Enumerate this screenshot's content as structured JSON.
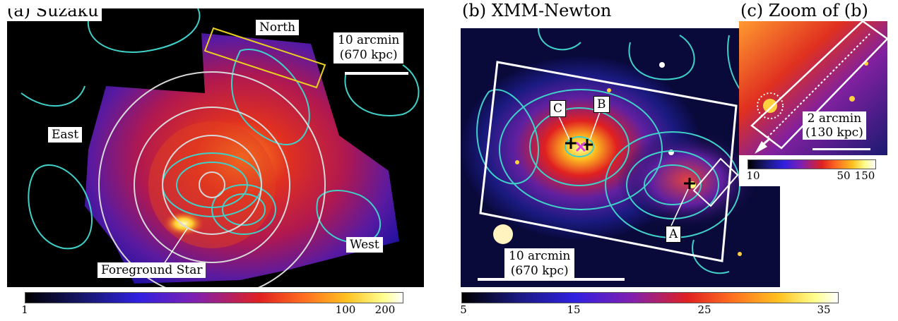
{
  "panels": {
    "a": {
      "title": "(a) Suzaku",
      "labels": {
        "north": "North",
        "east": "East",
        "west": "West",
        "star": "Foreground Star"
      },
      "scale": {
        "line1": "10 arcmin",
        "line2": "(670 kpc)"
      },
      "colorbar": {
        "ticks": [
          "1",
          "100",
          "200"
        ]
      }
    },
    "b": {
      "title": "(b) XMM-Newton",
      "markers": {
        "a": "A",
        "b": "B",
        "c": "C"
      },
      "scale": {
        "line1": "10 arcmin",
        "line2": "(670 kpc)"
      },
      "colorbar": {
        "ticks": [
          "5",
          "15",
          "25",
          "35"
        ]
      }
    },
    "c": {
      "title": "(c) Zoom of (b)",
      "scale": {
        "line1": "2 arcmin",
        "line2": "(130 kpc)"
      },
      "colorbar": {
        "ticks": [
          "10",
          "50",
          "150"
        ]
      }
    }
  },
  "colors": {
    "contour": "#40d0c8",
    "box_north": "#e8d020",
    "circle": "#d8d8d8"
  }
}
